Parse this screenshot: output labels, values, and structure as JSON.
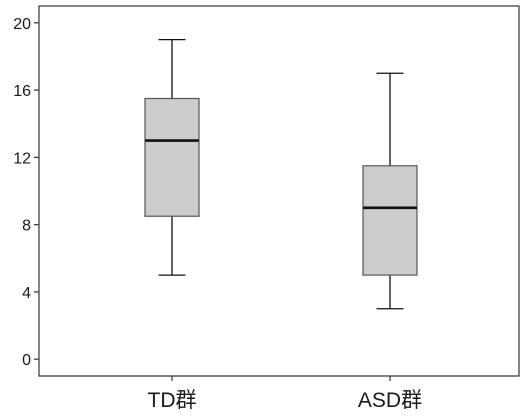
{
  "chart_data": {
    "type": "boxplot",
    "title": "",
    "xlabel": "",
    "ylabel": "",
    "ylim": [
      -1,
      21
    ],
    "yticks": [
      0,
      4,
      8,
      12,
      16,
      20
    ],
    "categories": [
      "TD群",
      "ASD群"
    ],
    "series": [
      {
        "category": "TD群",
        "min": 5,
        "q1": 8.5,
        "median": 13,
        "q3": 15.5,
        "max": 19
      },
      {
        "category": "ASD群",
        "min": 3,
        "q1": 5,
        "median": 9,
        "q3": 11.5,
        "max": 17
      }
    ],
    "grid": false,
    "legend": "none",
    "colors": {
      "box_fill": "#cccccc",
      "box_stroke": "#555555",
      "median": "#111111",
      "whisker": "#111111",
      "axis": "#333333"
    }
  }
}
